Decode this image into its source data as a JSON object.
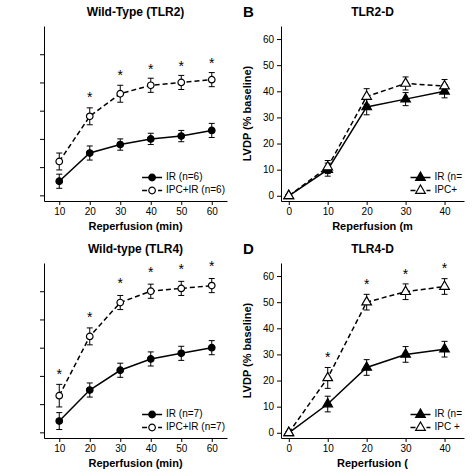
{
  "chart_data": [
    {
      "type": "line",
      "title": "Wild-Type (TLR2)",
      "xlabel": "Reperfusion (min)",
      "x": [
        10,
        20,
        30,
        40,
        50,
        60
      ],
      "series": [
        {
          "name": "IR (n=6)",
          "color": "#000000",
          "marker": "circle",
          "line_style": "solid",
          "values": [
            5,
            15,
            18,
            20,
            21,
            23
          ],
          "errors": [
            2.5,
            2.5,
            2.0,
            2.0,
            2.0,
            2.5
          ]
        },
        {
          "name": "IPC+IR (n=6)",
          "color": "#000000",
          "marker": "circle-open",
          "line_style": "dashed",
          "values": [
            12,
            28,
            36,
            39,
            40,
            41
          ],
          "errors": [
            3,
            3,
            3,
            2.5,
            2.5,
            2.5
          ]
        }
      ],
      "annotations": [
        {
          "text": "*",
          "x": 20,
          "y": 33
        },
        {
          "text": "*",
          "x": 30,
          "y": 41
        },
        {
          "text": "*",
          "x": 40,
          "y": 43
        },
        {
          "text": "*",
          "x": 50,
          "y": 44
        },
        {
          "text": "*",
          "x": 60,
          "y": 45
        }
      ],
      "xlim": [
        5,
        65
      ],
      "ylim": [
        -2,
        60
      ],
      "xticks": [
        10,
        20,
        30,
        40,
        50,
        60
      ],
      "yticks": [
        0,
        10,
        20,
        30,
        40,
        50
      ],
      "tick_labels": "x",
      "legend": "lower right",
      "grid": false
    },
    {
      "type": "line",
      "title": "TLR2-D",
      "label": "B",
      "xlabel": "Reperfusion (m",
      "ylabel": "LVDP (% baseline)",
      "x": [
        0,
        10,
        20,
        30,
        40
      ],
      "series": [
        {
          "name": "IR (n=",
          "color": "#000000",
          "marker": "triangle",
          "line_style": "solid",
          "values": [
            0,
            10,
            34,
            37,
            40
          ],
          "errors": [
            0.5,
            2.5,
            3,
            2.5,
            2.5
          ]
        },
        {
          "name": "IPC+",
          "color": "#000000",
          "marker": "triangle-open",
          "line_style": "dashed",
          "values": [
            0,
            11,
            38,
            43,
            42
          ],
          "errors": [
            0.5,
            2.5,
            3,
            2.5,
            2.5
          ]
        }
      ],
      "xlim": [
        -2,
        45
      ],
      "ylim": [
        -2,
        65
      ],
      "xticks": [
        0,
        10,
        20,
        30,
        40
      ],
      "yticks": [
        0,
        10,
        20,
        30,
        40,
        50,
        60
      ],
      "legend": "lower right",
      "grid": false
    },
    {
      "type": "line",
      "title": "Wild-type (TLR4)",
      "xlabel": "Reperfusion (min)",
      "x": [
        10,
        20,
        30,
        40,
        50,
        60
      ],
      "series": [
        {
          "name": "IR (n=7)",
          "color": "#000000",
          "marker": "circle",
          "line_style": "solid",
          "values": [
            4,
            15,
            22,
            26,
            28,
            30
          ],
          "errors": [
            3,
            2.5,
            2.5,
            2.5,
            2.5,
            2.5
          ]
        },
        {
          "name": "IPC+IR (n=7)",
          "color": "#000000",
          "marker": "circle-open",
          "line_style": "dashed",
          "values": [
            13,
            34,
            46,
            50,
            51,
            52
          ],
          "errors": [
            4,
            3,
            2.5,
            2.5,
            2.5,
            2.5
          ]
        }
      ],
      "annotations": [
        {
          "text": "*",
          "x": 10,
          "y": 19
        },
        {
          "text": "*",
          "x": 20,
          "y": 39
        },
        {
          "text": "*",
          "x": 30,
          "y": 51
        },
        {
          "text": "*",
          "x": 40,
          "y": 55
        },
        {
          "text": "*",
          "x": 50,
          "y": 56
        },
        {
          "text": "*",
          "x": 60,
          "y": 57
        }
      ],
      "xlim": [
        5,
        65
      ],
      "ylim": [
        -2,
        60
      ],
      "xticks": [
        10,
        20,
        30,
        40,
        50,
        60
      ],
      "yticks": [
        0,
        10,
        20,
        30,
        40,
        50
      ],
      "tick_labels": "x",
      "legend": "lower right",
      "grid": false
    },
    {
      "type": "line",
      "title": "TLR4-D",
      "label": "D",
      "xlabel": "Reperfusion (",
      "ylabel": "LVDP (% baseline)",
      "x": [
        0,
        10,
        20,
        30,
        40
      ],
      "series": [
        {
          "name": "IR (n=",
          "color": "#000000",
          "marker": "triangle",
          "line_style": "solid",
          "values": [
            0,
            11,
            25,
            30,
            32
          ],
          "errors": [
            0.5,
            3,
            3,
            3,
            3
          ]
        },
        {
          "name": "IPC +",
          "color": "#000000",
          "marker": "triangle-open",
          "line_style": "dashed",
          "values": [
            0,
            21,
            50,
            54,
            56
          ],
          "errors": [
            0.5,
            4,
            3,
            3,
            3
          ]
        }
      ],
      "annotations": [
        {
          "text": "*",
          "x": 10,
          "y": 27
        },
        {
          "text": "*",
          "x": 20,
          "y": 55
        },
        {
          "text": "*",
          "x": 30,
          "y": 59
        },
        {
          "text": "*",
          "x": 40,
          "y": 61
        }
      ],
      "xlim": [
        -2,
        45
      ],
      "ylim": [
        -2,
        65
      ],
      "xticks": [
        0,
        10,
        20,
        30,
        40
      ],
      "yticks": [
        0,
        10,
        20,
        30,
        40,
        50,
        60
      ],
      "legend": "lower right",
      "grid": false
    }
  ]
}
